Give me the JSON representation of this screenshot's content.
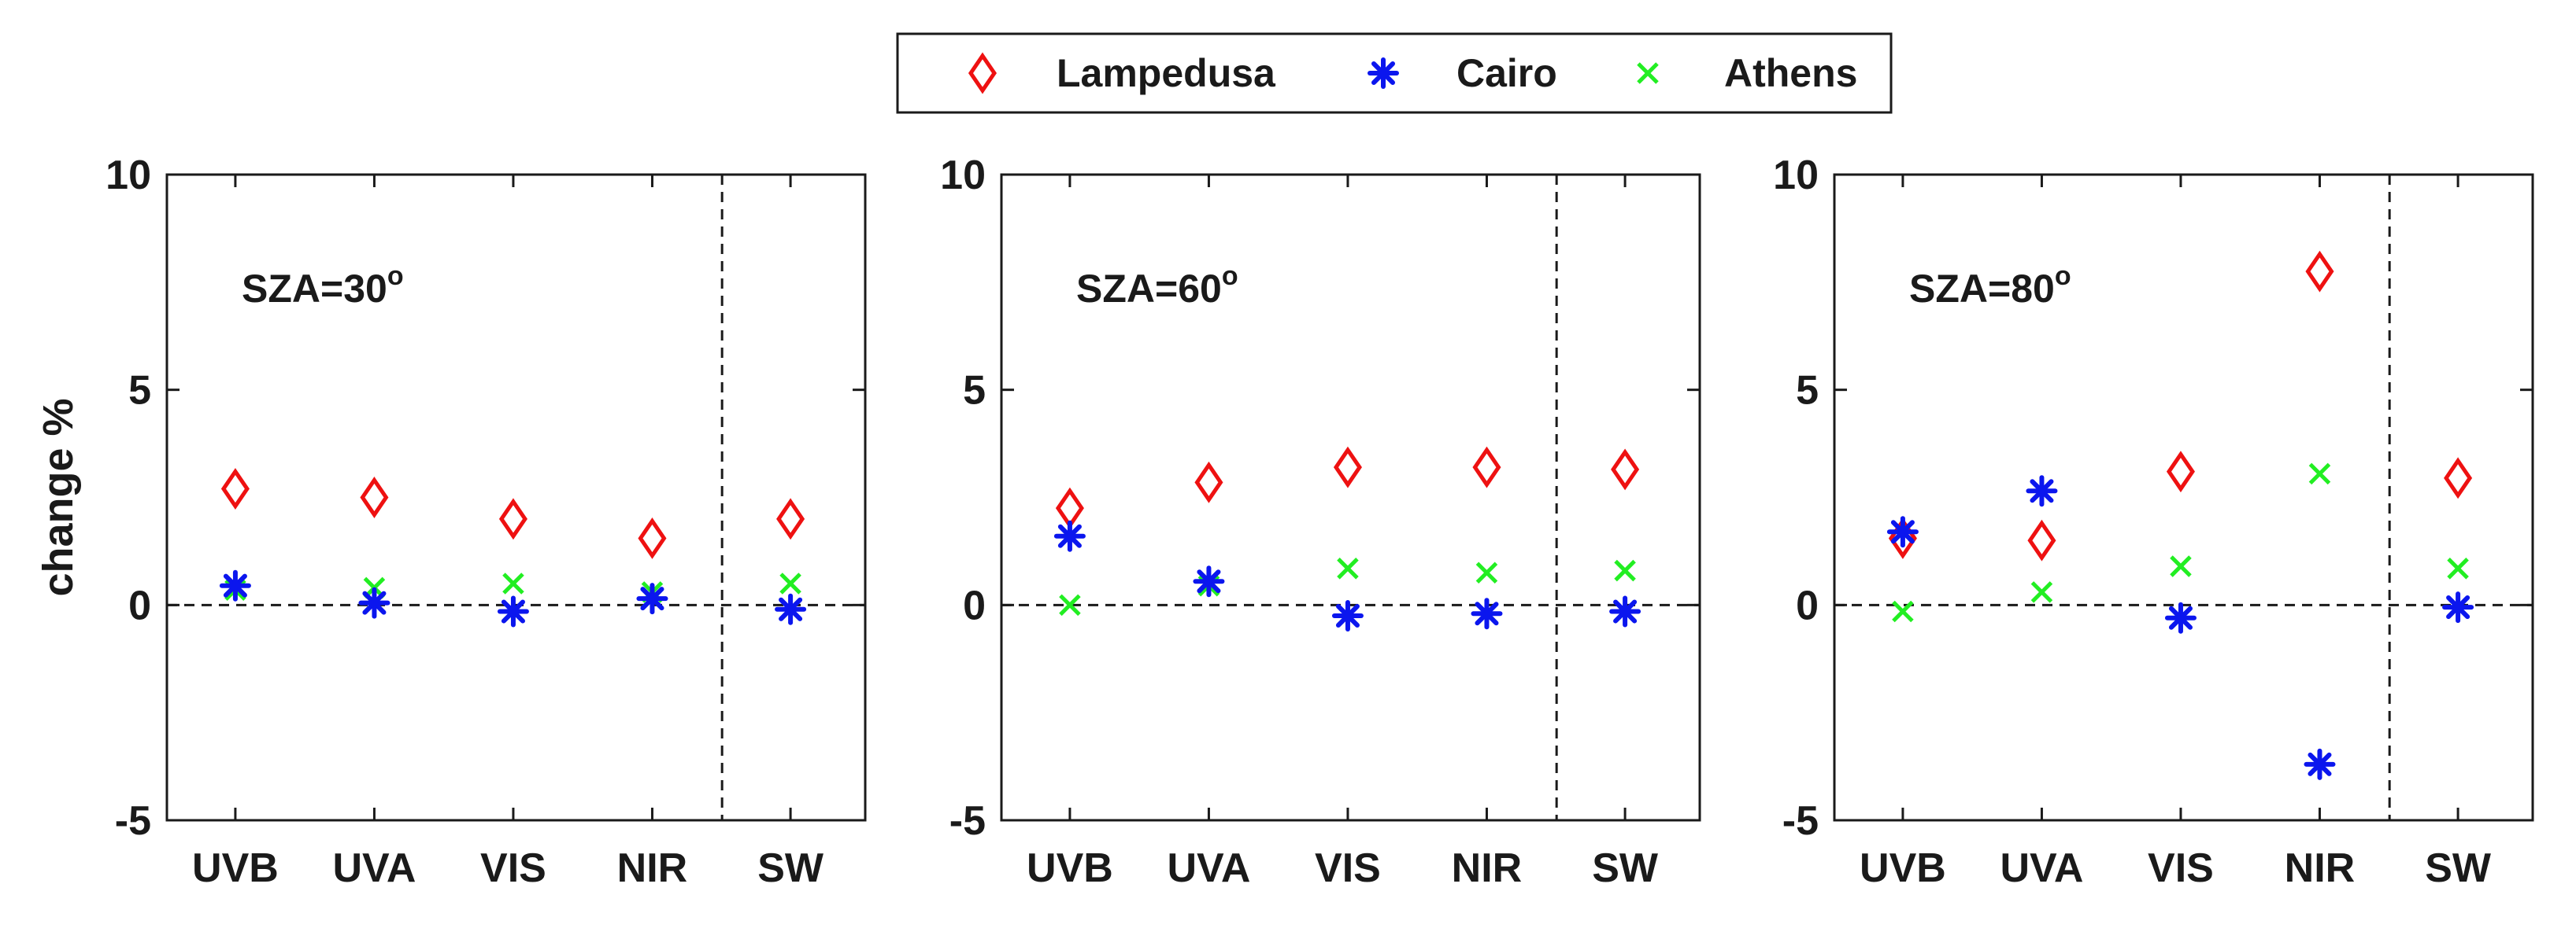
{
  "legend": {
    "entries": [
      {
        "name": "Lampedusa",
        "marker": "diamond",
        "color": "#ee1111"
      },
      {
        "name": "Cairo",
        "marker": "asterisk",
        "color": "#0b16ee"
      },
      {
        "name": "Athens",
        "marker": "cross",
        "color": "#22ee22"
      }
    ]
  },
  "chart_data": [
    {
      "type": "scatter",
      "title": "SZA=30",
      "title_superscript": "o",
      "ylabel": "change %",
      "xlabel": "",
      "categories": [
        "UVB",
        "UVA",
        "VIS",
        "NIR",
        "SW"
      ],
      "ylim": [
        -5,
        10
      ],
      "yticks": [
        -5,
        0,
        5,
        10
      ],
      "zero_line": true,
      "separator_between": [
        "NIR",
        "SW"
      ],
      "series": [
        {
          "name": "Lampedusa",
          "values": [
            2.7,
            2.5,
            2.0,
            1.55,
            2.0
          ]
        },
        {
          "name": "Cairo",
          "values": [
            0.45,
            0.05,
            -0.15,
            0.15,
            -0.1
          ]
        },
        {
          "name": "Athens",
          "values": [
            0.35,
            0.4,
            0.5,
            0.3,
            0.5
          ]
        }
      ]
    },
    {
      "type": "scatter",
      "title": "SZA=60",
      "title_superscript": "o",
      "ylabel": "",
      "xlabel": "",
      "categories": [
        "UVB",
        "UVA",
        "VIS",
        "NIR",
        "SW"
      ],
      "ylim": [
        -5,
        10
      ],
      "yticks": [
        -5,
        0,
        5,
        10
      ],
      "zero_line": true,
      "separator_between": [
        "NIR",
        "SW"
      ],
      "series": [
        {
          "name": "Lampedusa",
          "values": [
            2.25,
            2.85,
            3.2,
            3.2,
            3.15
          ]
        },
        {
          "name": "Cairo",
          "values": [
            1.6,
            0.55,
            -0.25,
            -0.2,
            -0.15
          ]
        },
        {
          "name": "Athens",
          "values": [
            0.0,
            0.45,
            0.85,
            0.75,
            0.8
          ]
        }
      ]
    },
    {
      "type": "scatter",
      "title": "SZA=80",
      "title_superscript": "o",
      "ylabel": "",
      "xlabel": "",
      "categories": [
        "UVB",
        "UVA",
        "VIS",
        "NIR",
        "SW"
      ],
      "ylim": [
        -5,
        10
      ],
      "yticks": [
        -5,
        0,
        5,
        10
      ],
      "zero_line": true,
      "separator_between": [
        "NIR",
        "SW"
      ],
      "series": [
        {
          "name": "Lampedusa",
          "values": [
            1.55,
            1.5,
            3.1,
            7.75,
            2.95
          ]
        },
        {
          "name": "Cairo",
          "values": [
            1.7,
            2.65,
            -0.3,
            -3.7,
            -0.05
          ]
        },
        {
          "name": "Athens",
          "values": [
            -0.15,
            0.3,
            0.9,
            3.05,
            0.85
          ]
        }
      ]
    }
  ]
}
